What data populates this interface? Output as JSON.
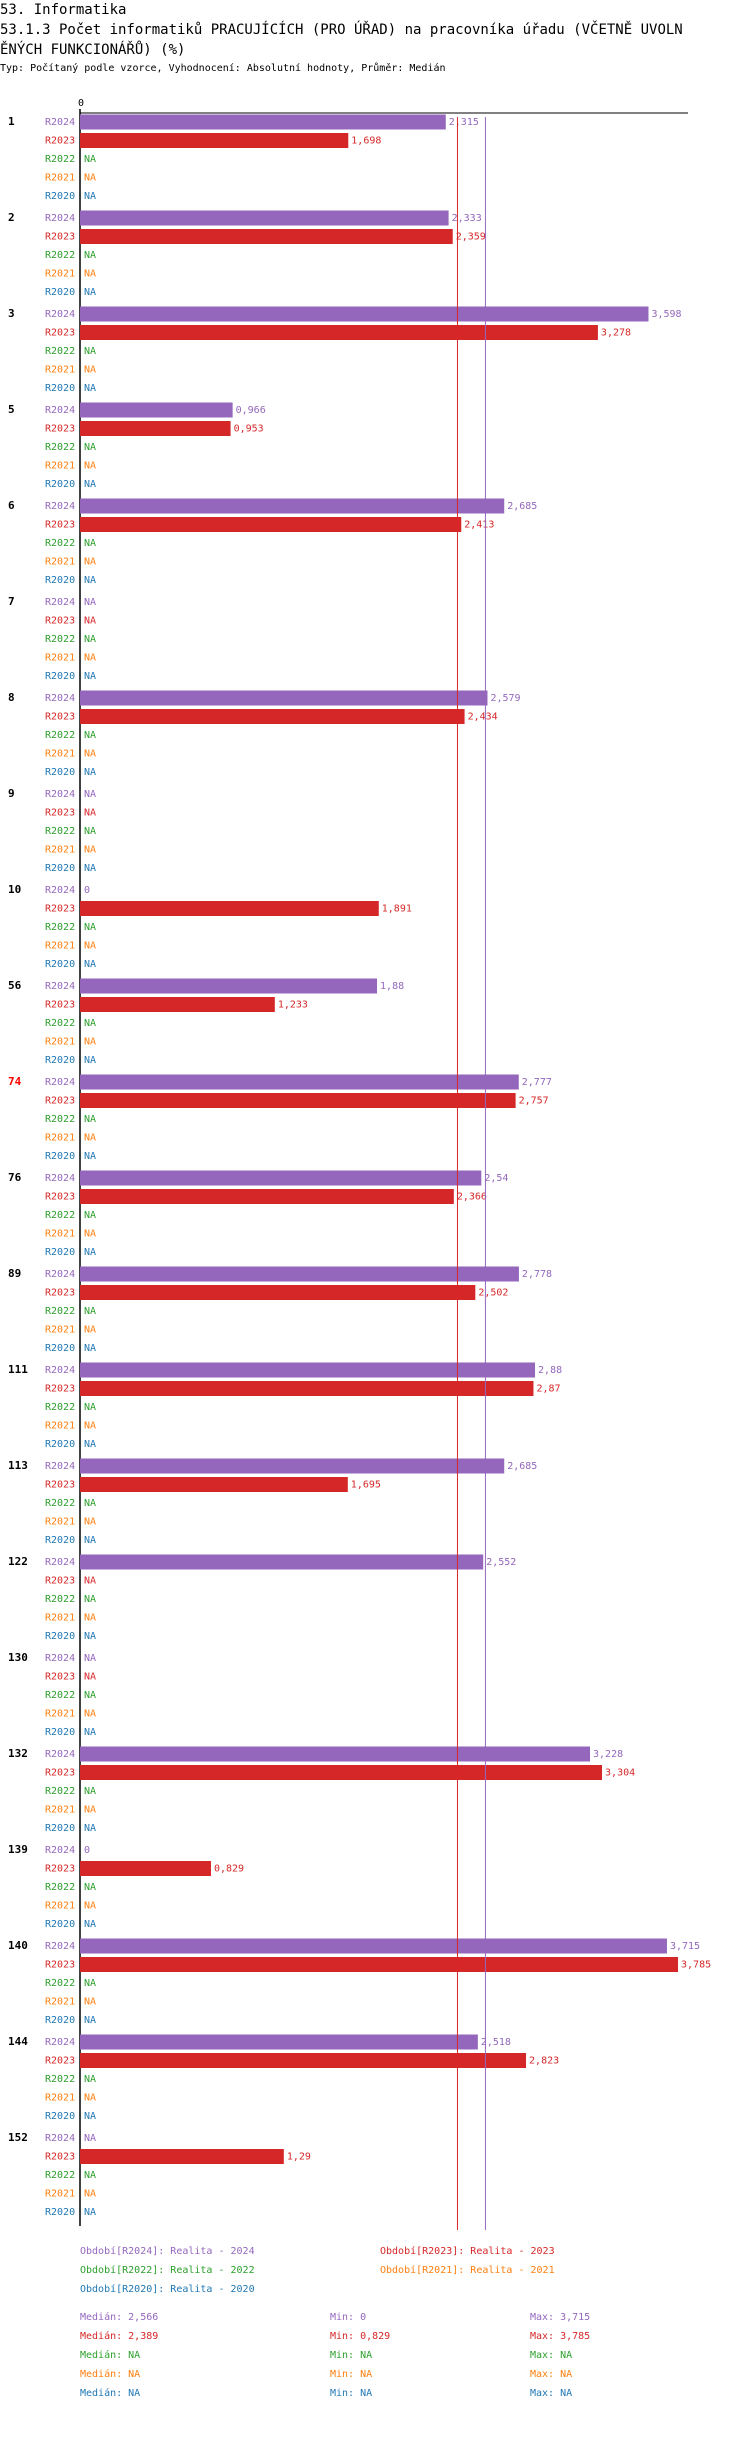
{
  "header": {
    "section": "53. Informatika",
    "title": "53.1.3 Počet informatiků PRACUJÍCÍCH (PRO ÚŘAD) na pracovníka úřadu (VČETNĚ UVOLNĚNÝCH FUNKCIONÁŘŮ) (%)",
    "subtitle": "Typ: Počítaný podle vzorce, Vyhodnocení: Absolutní hodnoty, Průměr: Medián"
  },
  "colors": {
    "R2024": "#9467bd",
    "R2023": "#d62728",
    "R2022": "#2ca02c",
    "R2021": "#ff7f0e",
    "R2020": "#1f77b4",
    "highlight": "#ff0000",
    "axis": "#000000"
  },
  "chart_data": {
    "type": "bar",
    "orientation": "horizontal",
    "x_tick_label": "0",
    "xlim": [
      0,
      3.9
    ],
    "series_names": [
      "R2024",
      "R2023",
      "R2022",
      "R2021",
      "R2020"
    ],
    "na_label": "NA",
    "reference_lines": [
      {
        "series": "R2024",
        "label": "Medián",
        "value": 2.566
      },
      {
        "series": "R2023",
        "label": "Medián",
        "value": 2.389
      }
    ],
    "categories": [
      {
        "id": "1",
        "highlight": false,
        "values": [
          2.315,
          1.698,
          null,
          null,
          null
        ],
        "labels": [
          "2,315",
          "1,698",
          "NA",
          "NA",
          "NA"
        ]
      },
      {
        "id": "2",
        "highlight": false,
        "values": [
          2.333,
          2.359,
          null,
          null,
          null
        ],
        "labels": [
          "2,333",
          "2,359",
          "NA",
          "NA",
          "NA"
        ]
      },
      {
        "id": "3",
        "highlight": false,
        "values": [
          3.598,
          3.278,
          null,
          null,
          null
        ],
        "labels": [
          "3,598",
          "3,278",
          "NA",
          "NA",
          "NA"
        ]
      },
      {
        "id": "5",
        "highlight": false,
        "values": [
          0.966,
          0.953,
          null,
          null,
          null
        ],
        "labels": [
          "0,966",
          "0,953",
          "NA",
          "NA",
          "NA"
        ]
      },
      {
        "id": "6",
        "highlight": false,
        "values": [
          2.685,
          2.413,
          null,
          null,
          null
        ],
        "labels": [
          "2,685",
          "2,413",
          "NA",
          "NA",
          "NA"
        ]
      },
      {
        "id": "7",
        "highlight": false,
        "values": [
          null,
          null,
          null,
          null,
          null
        ],
        "labels": [
          "NA",
          "NA",
          "NA",
          "NA",
          "NA"
        ]
      },
      {
        "id": "8",
        "highlight": false,
        "values": [
          2.579,
          2.434,
          null,
          null,
          null
        ],
        "labels": [
          "2,579",
          "2,434",
          "NA",
          "NA",
          "NA"
        ]
      },
      {
        "id": "9",
        "highlight": false,
        "values": [
          null,
          null,
          null,
          null,
          null
        ],
        "labels": [
          "NA",
          "NA",
          "NA",
          "NA",
          "NA"
        ]
      },
      {
        "id": "10",
        "highlight": false,
        "values": [
          0,
          1.891,
          null,
          null,
          null
        ],
        "labels": [
          "0",
          "1,891",
          "NA",
          "NA",
          "NA"
        ]
      },
      {
        "id": "56",
        "highlight": false,
        "values": [
          1.88,
          1.233,
          null,
          null,
          null
        ],
        "labels": [
          "1,88",
          "1,233",
          "NA",
          "NA",
          "NA"
        ]
      },
      {
        "id": "74",
        "highlight": true,
        "values": [
          2.777,
          2.757,
          null,
          null,
          null
        ],
        "labels": [
          "2,777",
          "2,757",
          "NA",
          "NA",
          "NA"
        ]
      },
      {
        "id": "76",
        "highlight": false,
        "values": [
          2.54,
          2.366,
          null,
          null,
          null
        ],
        "labels": [
          "2,54",
          "2,366",
          "NA",
          "NA",
          "NA"
        ]
      },
      {
        "id": "89",
        "highlight": false,
        "values": [
          2.778,
          2.502,
          null,
          null,
          null
        ],
        "labels": [
          "2,778",
          "2,502",
          "NA",
          "NA",
          "NA"
        ]
      },
      {
        "id": "111",
        "highlight": false,
        "values": [
          2.88,
          2.87,
          null,
          null,
          null
        ],
        "labels": [
          "2,88",
          "2,87",
          "NA",
          "NA",
          "NA"
        ]
      },
      {
        "id": "113",
        "highlight": false,
        "values": [
          2.685,
          1.695,
          null,
          null,
          null
        ],
        "labels": [
          "2,685",
          "1,695",
          "NA",
          "NA",
          "NA"
        ]
      },
      {
        "id": "122",
        "highlight": false,
        "values": [
          2.552,
          null,
          null,
          null,
          null
        ],
        "labels": [
          "2,552",
          "NA",
          "NA",
          "NA",
          "NA"
        ]
      },
      {
        "id": "130",
        "highlight": false,
        "values": [
          null,
          null,
          null,
          null,
          null
        ],
        "labels": [
          "NA",
          "NA",
          "NA",
          "NA",
          "NA"
        ]
      },
      {
        "id": "132",
        "highlight": false,
        "values": [
          3.228,
          3.304,
          null,
          null,
          null
        ],
        "labels": [
          "3,228",
          "3,304",
          "NA",
          "NA",
          "NA"
        ]
      },
      {
        "id": "139",
        "highlight": false,
        "values": [
          0,
          0.829,
          null,
          null,
          null
        ],
        "labels": [
          "0",
          "0,829",
          "NA",
          "NA",
          "NA"
        ]
      },
      {
        "id": "140",
        "highlight": false,
        "values": [
          3.715,
          3.785,
          null,
          null,
          null
        ],
        "labels": [
          "3,715",
          "3,785",
          "NA",
          "NA",
          "NA"
        ]
      },
      {
        "id": "144",
        "highlight": false,
        "values": [
          2.518,
          2.823,
          null,
          null,
          null
        ],
        "labels": [
          "2,518",
          "2,823",
          "NA",
          "NA",
          "NA"
        ]
      },
      {
        "id": "152",
        "highlight": false,
        "values": [
          null,
          1.29,
          null,
          null,
          null
        ],
        "labels": [
          "NA",
          "1,29",
          "NA",
          "NA",
          "NA"
        ]
      }
    ]
  },
  "legend": {
    "periods": [
      {
        "series": "R2024",
        "text": "Období[R2024]: Realita - 2024"
      },
      {
        "series": "R2023",
        "text": "Období[R2023]: Realita - 2023"
      },
      {
        "series": "R2022",
        "text": "Období[R2022]: Realita - 2022"
      },
      {
        "series": "R2021",
        "text": "Období[R2021]: Realita - 2021"
      },
      {
        "series": "R2020",
        "text": "Období[R2020]: Realita - 2020"
      }
    ],
    "stats": [
      {
        "series": "R2024",
        "median": "Medián: 2,566",
        "min": "Min: 0",
        "max": "Max: 3,715"
      },
      {
        "series": "R2023",
        "median": "Medián: 2,389",
        "min": "Min: 0,829",
        "max": "Max: 3,785"
      },
      {
        "series": "R2022",
        "median": "Medián: NA",
        "min": "Min: NA",
        "max": "Max: NA"
      },
      {
        "series": "R2021",
        "median": "Medián: NA",
        "min": "Min: NA",
        "max": "Max: NA"
      },
      {
        "series": "R2020",
        "median": "Medián: NA",
        "min": "Min: NA",
        "max": "Max: NA"
      }
    ]
  }
}
